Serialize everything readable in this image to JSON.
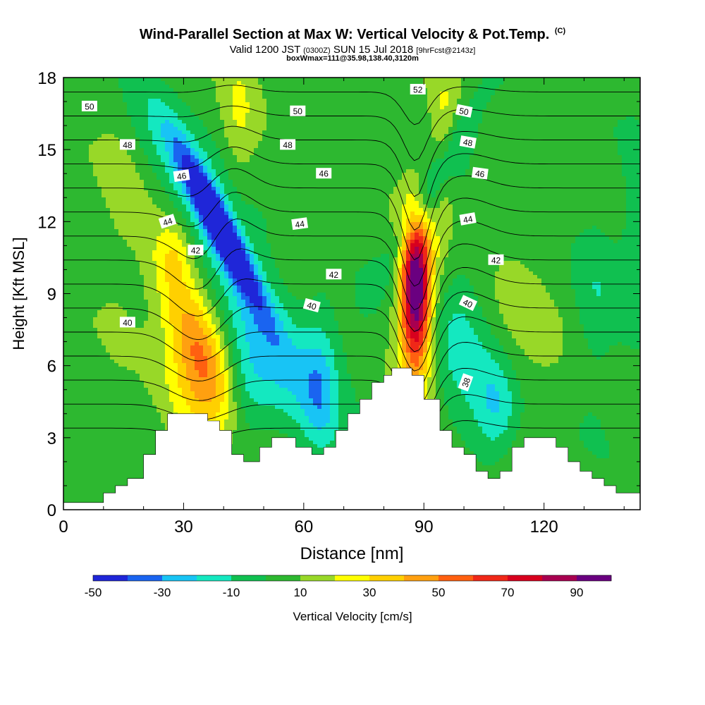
{
  "title": {
    "main": "Wind-Parallel Section at Max W: Vertical Velocity & Pot.Temp.",
    "main_suffix": "(C)",
    "sub_prefix": "Valid 1200 JST",
    "sub_utc": "(0300Z)",
    "sub_date": "SUN 15 Jul 2018",
    "sub_fcst": "[9hrFcst@2143z]",
    "box": "boxWmax=111@35.98,138.40,3120m"
  },
  "colors": {
    "scale": [
      "#1f26d8",
      "#1a64f0",
      "#18c4f5",
      "#14e8c0",
      "#10c050",
      "#2db830",
      "#98d828",
      "#ffff00",
      "#ffd000",
      "#ffa010",
      "#ff6010",
      "#f02818",
      "#d8001e",
      "#a80050",
      "#6a0080"
    ],
    "terrain": "#ffffff",
    "contour": "#000000"
  },
  "chart_data": {
    "type": "heatmap",
    "title": "Wind-Parallel Section at Max W: Vertical Velocity & Pot.Temp.",
    "xlabel": "Distance [nm]",
    "ylabel": "Height [Kft MSL]",
    "xlim": [
      0,
      144
    ],
    "ylim": [
      0,
      18
    ],
    "xticks": [
      0,
      30,
      60,
      90,
      120
    ],
    "yticks": [
      0,
      3,
      6,
      9,
      12,
      15,
      18
    ],
    "background_w": 5,
    "w_features": [
      {
        "x": 33,
        "z": 7.2,
        "sx": 5,
        "sz": 2.6,
        "amp": 38,
        "tilt": -2.2
      },
      {
        "x": 33,
        "z": 5.0,
        "sx": 6,
        "sz": 2.0,
        "amp": 20,
        "tilt": 0
      },
      {
        "x": 88,
        "z": 9.3,
        "sx": 2.6,
        "sz": 2.2,
        "amp": 92,
        "tilt": 0
      },
      {
        "x": 88,
        "z": 7.0,
        "sx": 4,
        "sz": 3.0,
        "amp": 18,
        "tilt": 0
      },
      {
        "x": 39,
        "z": 11.8,
        "sx": 2.4,
        "sz": 2.2,
        "amp": -62,
        "tilt": -3.0
      },
      {
        "x": 40,
        "z": 11.0,
        "sx": 6,
        "sz": 4.2,
        "amp": -28,
        "tilt": -3.0
      },
      {
        "x": 45,
        "z": 4.2,
        "sx": 4,
        "sz": 2.0,
        "amp": -15,
        "tilt": 0
      },
      {
        "x": 55,
        "z": 6.0,
        "sx": 13,
        "sz": 2.0,
        "amp": -12,
        "tilt": 0
      },
      {
        "x": 64,
        "z": 5.2,
        "sx": 3,
        "sz": 2.0,
        "amp": -20,
        "tilt": 0
      },
      {
        "x": 94,
        "z": 14.0,
        "sx": 3,
        "sz": 3.0,
        "amp": -20,
        "tilt": 3.2
      },
      {
        "x": 99,
        "z": 6.8,
        "sx": 6,
        "sz": 3.0,
        "amp": -18,
        "tilt": 0
      },
      {
        "x": 108,
        "z": 4.2,
        "sx": 4,
        "sz": 1.6,
        "amp": -25,
        "tilt": 0
      },
      {
        "x": 44,
        "z": 16.5,
        "sx": 3,
        "sz": 2.2,
        "amp": 14,
        "tilt": 0
      },
      {
        "x": 95,
        "z": 15.0,
        "sx": 2.5,
        "sz": 3.0,
        "amp": 16,
        "tilt": 0
      },
      {
        "x": 113,
        "z": 7.5,
        "sx": 8,
        "sz": 3.5,
        "amp": 8,
        "tilt": 0
      },
      {
        "x": 133,
        "z": 8.5,
        "sx": 4,
        "sz": 3.0,
        "amp": -12,
        "tilt": 0
      },
      {
        "x": 143,
        "z": 11.0,
        "sx": 3,
        "sz": 3.0,
        "amp": -12,
        "tilt": 0
      },
      {
        "x": 28,
        "z": 10.8,
        "sx": 3,
        "sz": 1.0,
        "amp": 14,
        "tilt": 0
      },
      {
        "x": 14,
        "z": 13.0,
        "sx": 4,
        "sz": 5.0,
        "amp": 6,
        "tilt": 0
      }
    ],
    "terrain": [
      [
        0,
        0.3
      ],
      [
        10,
        0.3
      ],
      [
        10,
        0.7
      ],
      [
        13,
        0.7
      ],
      [
        13,
        1.0
      ],
      [
        16,
        1.0
      ],
      [
        16,
        1.3
      ],
      [
        20,
        1.3
      ],
      [
        20,
        2.3
      ],
      [
        23,
        2.3
      ],
      [
        23,
        3.3
      ],
      [
        26,
        3.3
      ],
      [
        26,
        4.0
      ],
      [
        36,
        4.0
      ],
      [
        36,
        3.7
      ],
      [
        39,
        3.7
      ],
      [
        39,
        3.3
      ],
      [
        42,
        3.3
      ],
      [
        42,
        2.3
      ],
      [
        45,
        2.3
      ],
      [
        45,
        2.0
      ],
      [
        49,
        2.0
      ],
      [
        49,
        2.6
      ],
      [
        52,
        2.6
      ],
      [
        52,
        3.0
      ],
      [
        58,
        3.0
      ],
      [
        58,
        2.6
      ],
      [
        62,
        2.6
      ],
      [
        62,
        2.3
      ],
      [
        65,
        2.3
      ],
      [
        65,
        2.6
      ],
      [
        68,
        2.6
      ],
      [
        68,
        3.3
      ],
      [
        71,
        3.3
      ],
      [
        71,
        4.0
      ],
      [
        74,
        4.0
      ],
      [
        74,
        4.6
      ],
      [
        77,
        4.6
      ],
      [
        77,
        5.3
      ],
      [
        80,
        5.3
      ],
      [
        80,
        5.6
      ],
      [
        82,
        5.6
      ],
      [
        82,
        5.9
      ],
      [
        87,
        5.9
      ],
      [
        87,
        5.6
      ],
      [
        90,
        5.6
      ],
      [
        90,
        4.6
      ],
      [
        94,
        4.6
      ],
      [
        94,
        3.3
      ],
      [
        97,
        3.3
      ],
      [
        97,
        2.6
      ],
      [
        100,
        2.6
      ],
      [
        100,
        2.3
      ],
      [
        103,
        2.3
      ],
      [
        103,
        1.6
      ],
      [
        106,
        1.6
      ],
      [
        106,
        1.3
      ],
      [
        109,
        1.3
      ],
      [
        109,
        1.6
      ],
      [
        112,
        1.6
      ],
      [
        112,
        2.6
      ],
      [
        115,
        2.6
      ],
      [
        115,
        3.0
      ],
      [
        123,
        3.0
      ],
      [
        123,
        2.6
      ],
      [
        126,
        2.6
      ],
      [
        126,
        2.0
      ],
      [
        129,
        2.0
      ],
      [
        129,
        1.6
      ],
      [
        132,
        1.6
      ],
      [
        132,
        1.3
      ],
      [
        135,
        1.3
      ],
      [
        135,
        1.0
      ],
      [
        138,
        1.0
      ],
      [
        138,
        0.7
      ],
      [
        144,
        0.7
      ]
    ],
    "theta_contours": {
      "levels": [
        38,
        39,
        40,
        41,
        42,
        43,
        44,
        45,
        46,
        47,
        48,
        49,
        50,
        51,
        52
      ],
      "labels": [
        {
          "text": "50",
          "x": 6.5,
          "z": 16.8,
          "rot": 0
        },
        {
          "text": "48",
          "x": 16,
          "z": 15.2,
          "rot": 0
        },
        {
          "text": "46",
          "x": 29.5,
          "z": 13.9,
          "rot": -8
        },
        {
          "text": "44",
          "x": 26,
          "z": 12.0,
          "rot": -18
        },
        {
          "text": "42",
          "x": 33,
          "z": 10.8,
          "rot": 0
        },
        {
          "text": "40",
          "x": 16,
          "z": 7.8,
          "rot": 0
        },
        {
          "text": "50",
          "x": 58.5,
          "z": 16.6,
          "rot": 0
        },
        {
          "text": "48",
          "x": 56,
          "z": 15.2,
          "rot": 0
        },
        {
          "text": "46",
          "x": 65,
          "z": 14.0,
          "rot": 0
        },
        {
          "text": "44",
          "x": 59,
          "z": 11.9,
          "rot": -8
        },
        {
          "text": "42",
          "x": 67.5,
          "z": 9.8,
          "rot": 0
        },
        {
          "text": "40",
          "x": 62,
          "z": 8.5,
          "rot": 15
        },
        {
          "text": "52",
          "x": 88.5,
          "z": 17.5,
          "rot": 0
        },
        {
          "text": "50",
          "x": 100,
          "z": 16.6,
          "rot": 12
        },
        {
          "text": "48",
          "x": 101,
          "z": 15.3,
          "rot": 10
        },
        {
          "text": "46",
          "x": 104,
          "z": 14.0,
          "rot": 8
        },
        {
          "text": "44",
          "x": 101,
          "z": 12.1,
          "rot": -10
        },
        {
          "text": "42",
          "x": 108,
          "z": 10.4,
          "rot": 0
        },
        {
          "text": "40",
          "x": 101,
          "z": 8.6,
          "rot": 25
        },
        {
          "text": "38",
          "x": 100.5,
          "z": 5.3,
          "rot": -70
        }
      ]
    },
    "colorbar": {
      "label": "Vertical Velocity [cm/s]",
      "min": -50,
      "max": 100,
      "step": 10,
      "tick_labels": [
        "-50",
        "-30",
        "-10",
        "10",
        "30",
        "50",
        "70",
        "90"
      ]
    }
  }
}
